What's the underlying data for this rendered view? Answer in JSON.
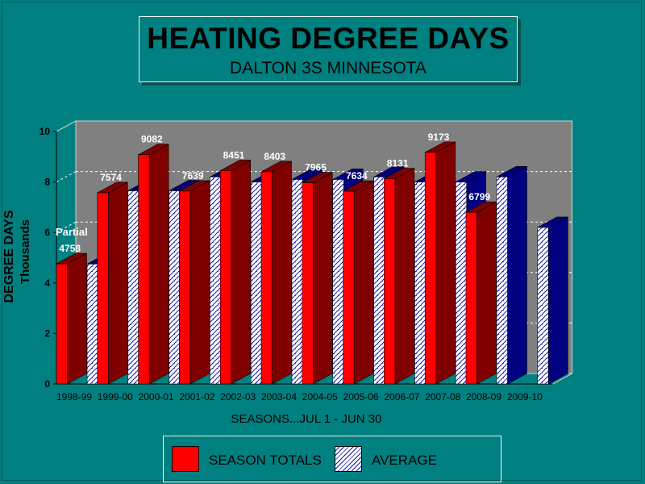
{
  "title": "HEATING DEGREE DAYS",
  "subtitle": "DALTON 3S MINNESOTA",
  "colors": {
    "background": "#008080",
    "season_front": "#ff0000",
    "season_side": "#800000",
    "average_front": "#ffffff",
    "average_side": "#000080",
    "plot_back": "#808080"
  },
  "chart_data": {
    "type": "bar",
    "title": "HEATING DEGREE DAYS",
    "subtitle": "DALTON 3S MINNESOTA",
    "xlabel": "SEASONS...JUL 1 - JUN 30",
    "ylabel": "DEGREE DAYS",
    "ylabel2": "Thousands",
    "ylim": [
      0,
      10
    ],
    "yticks": [
      0,
      2,
      4,
      6,
      8,
      10
    ],
    "grid": true,
    "categories": [
      "1998-99",
      "1999-00",
      "2000-01",
      "2001-02",
      "2002-03",
      "2003-04",
      "2004-05",
      "2005-06",
      "2006-07",
      "2007-08",
      "2008-09",
      "2009-10"
    ],
    "series": [
      {
        "name": "SEASON TOTALS",
        "values": [
          4758,
          7574,
          9082,
          7639,
          8451,
          8403,
          7965,
          7634,
          8131,
          9173,
          6799,
          null
        ],
        "labels": [
          "4758",
          "7574",
          "9082",
          "7639",
          "8451",
          "8403",
          "7965",
          "7634",
          "8131",
          "9173",
          "6799",
          ""
        ]
      },
      {
        "name": "AVERAGE",
        "values": [
          4750,
          7650,
          7650,
          8200,
          8000,
          8100,
          8100,
          8200,
          8000,
          8000,
          8200,
          6200
        ]
      }
    ],
    "annotations": [
      {
        "text": "Partial",
        "category": "1998-99"
      }
    ]
  },
  "legend": {
    "season": "SEASON TOTALS",
    "average": "AVERAGE"
  }
}
